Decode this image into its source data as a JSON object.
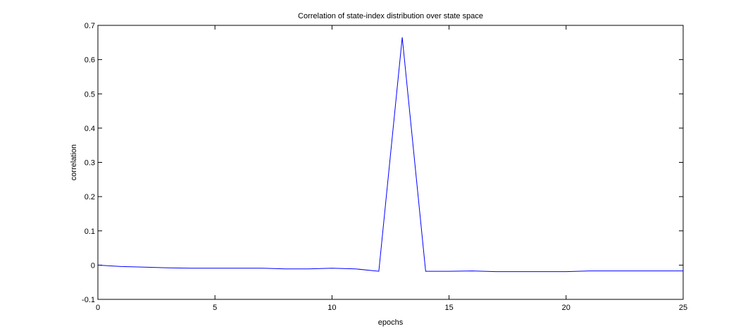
{
  "chart_data": {
    "type": "line",
    "title": "Correlation of state-index distribution over state space",
    "xlabel": "epochs",
    "ylabel": "correlation",
    "xlim": [
      0,
      25
    ],
    "ylim": [
      -0.1,
      0.7
    ],
    "xticks": [
      0,
      5,
      10,
      15,
      20,
      25
    ],
    "yticks": [
      -0.1,
      0,
      0.1,
      0.2,
      0.3,
      0.4,
      0.5,
      0.6,
      0.7
    ],
    "xtick_labels": [
      "0",
      "5",
      "10",
      "15",
      "20",
      "25"
    ],
    "ytick_labels": [
      "-0.1",
      "0",
      "0.1",
      "0.2",
      "0.3",
      "0.4",
      "0.5",
      "0.6",
      "0.7"
    ],
    "grid": false,
    "legend": false,
    "series": [
      {
        "color": "#0000ff",
        "x": [
          0,
          1,
          2,
          3,
          4,
          5,
          6,
          7,
          8,
          9,
          10,
          11,
          12,
          13,
          14,
          15,
          16,
          17,
          18,
          19,
          20,
          21,
          22,
          23,
          24,
          25
        ],
        "y": [
          0.0,
          -0.004,
          -0.006,
          -0.008,
          -0.009,
          -0.009,
          -0.009,
          -0.009,
          -0.011,
          -0.011,
          -0.009,
          -0.011,
          -0.018,
          0.665,
          -0.018,
          -0.018,
          -0.017,
          -0.019,
          -0.019,
          -0.019,
          -0.019,
          -0.017,
          -0.017,
          -0.017,
          -0.017,
          -0.017
        ]
      }
    ]
  }
}
